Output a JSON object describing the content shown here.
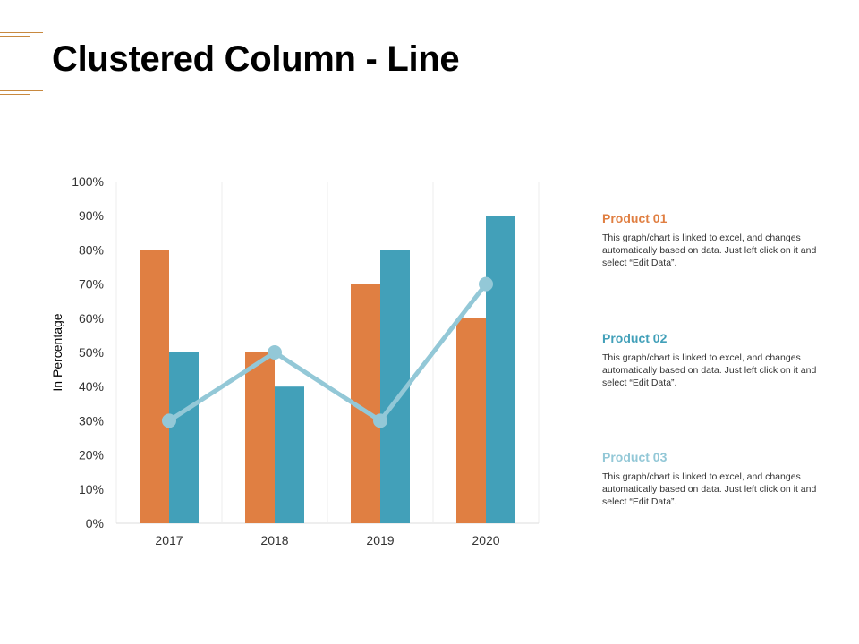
{
  "title": "Clustered Column - Line",
  "colors": {
    "accent_line": "#c8893f",
    "series1": "#e07f42",
    "series2": "#42a0b9",
    "series3": "#93c8d7",
    "grid": "#eeeeee",
    "axis_text": "#333333"
  },
  "chart_data": {
    "type": "bar",
    "subtype": "clustered-column-line",
    "categories": [
      "2017",
      "2018",
      "2019",
      "2020"
    ],
    "series": [
      {
        "values": [
          80,
          50,
          70,
          60
        ],
        "color": "#e07f42",
        "render": "bar"
      },
      {
        "values": [
          50,
          40,
          80,
          90
        ],
        "color": "#42a0b9",
        "render": "bar"
      },
      {
        "values": [
          30,
          50,
          30,
          70
        ],
        "color": "#93c8d7",
        "render": "line"
      }
    ],
    "ylabel": "In Percentage",
    "xlabel": "",
    "ylim": [
      0,
      100
    ],
    "yticks": [
      "0%",
      "10%",
      "20%",
      "30%",
      "40%",
      "50%",
      "60%",
      "70%",
      "80%",
      "90%",
      "100%"
    ],
    "grid": true,
    "legend": "none"
  },
  "products": [
    {
      "name": "Product 01",
      "color": "#e07f42",
      "desc": "This graph/chart is linked to excel, and changes automatically based on data. Just left click on it and select “Edit Data”."
    },
    {
      "name": "Product 02",
      "color": "#42a0b9",
      "desc": "This graph/chart is linked to excel, and changes automatically based on data. Just left click on it and select “Edit Data”."
    },
    {
      "name": "Product 03",
      "color": "#93c8d7",
      "desc": "This graph/chart is linked to excel, and changes automatically based on data. Just left click on it and select “Edit Data”."
    }
  ]
}
